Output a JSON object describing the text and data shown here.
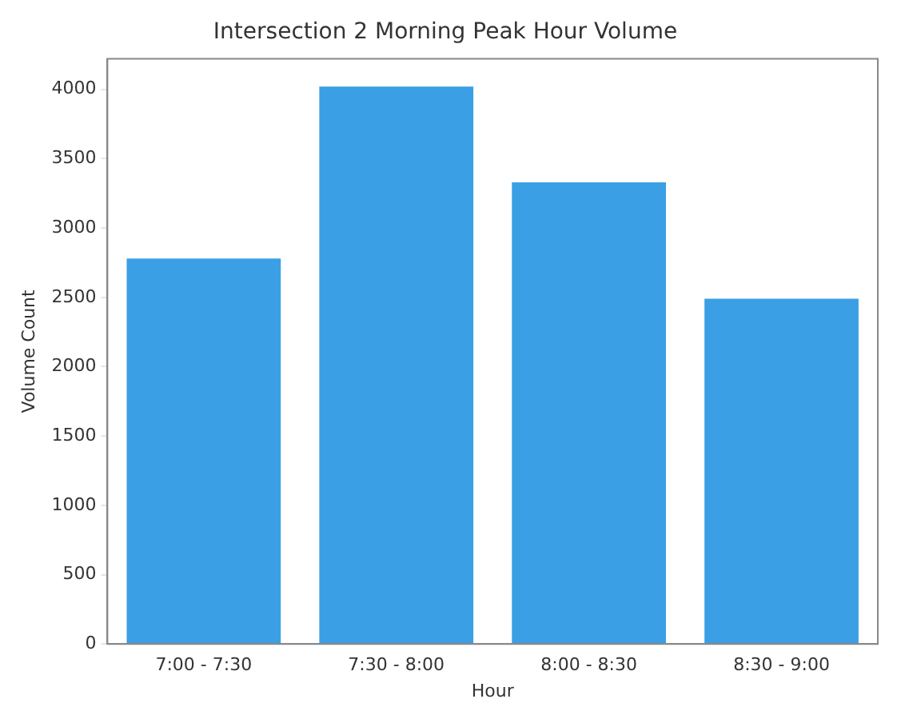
{
  "chart_data": {
    "type": "bar",
    "title": "Intersection 2 Morning Peak Hour Volume",
    "xlabel": "Hour",
    "ylabel": "Volume Count",
    "categories": [
      "7:00 - 7:30",
      "7:30 - 8:00",
      "8:00 - 8:30",
      "8:30 - 9:00"
    ],
    "values": [
      2780,
      4020,
      3330,
      2490
    ],
    "color": "#3a9fe4",
    "ylim": [
      0,
      4220
    ],
    "yticks": [
      0,
      500,
      1000,
      1500,
      2000,
      2500,
      3000,
      3500,
      4000
    ],
    "grid": false,
    "legend": false
  }
}
